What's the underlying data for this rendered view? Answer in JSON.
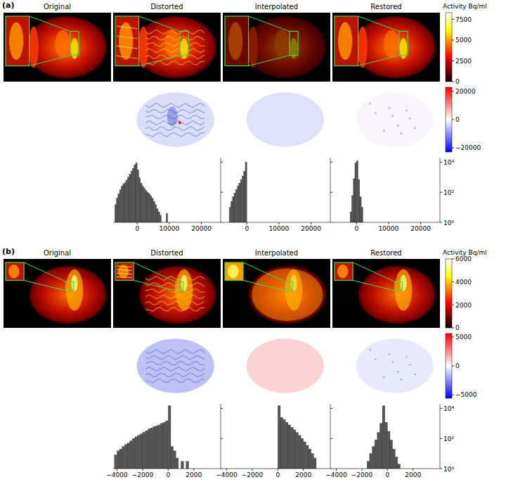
{
  "figure": {
    "panels": [
      {
        "letter": "(a)",
        "columns": [
          "Original",
          "Distorted",
          "Interpolated",
          "Restored"
        ],
        "colorbar": {
          "label": "Activity Bq/ml",
          "range": [
            0,
            8300
          ],
          "ticks": [
            0,
            2500,
            5000,
            7500
          ]
        },
        "diff_colorbar": {
          "range": [
            -23000,
            23000
          ],
          "ticks": [
            {
              "value": -20000,
              "label": "−20000"
            },
            0,
            20000
          ]
        }
      },
      {
        "letter": "(b)",
        "columns": [
          "Original",
          "Distorted",
          "Interpolated",
          "Restored"
        ],
        "colorbar": {
          "label": "Activity Bq/ml",
          "range": [
            0,
            6000
          ],
          "ticks": [
            0,
            2000,
            4000,
            6000
          ]
        },
        "diff_colorbar": {
          "range": [
            -5600,
            5600
          ],
          "ticks": [
            {
              "value": -5000,
              "label": "−5000"
            },
            0,
            5000
          ]
        }
      }
    ]
  },
  "chart_data": [
    {
      "type": "histogram",
      "color": "#555555",
      "log": "y",
      "tick_labels": "x",
      "bins": [
        -7000,
        -6500,
        -6000,
        -5500,
        -5000,
        -4500,
        -4000,
        -3500,
        -3000,
        -2500,
        -2000,
        -1500,
        -1000,
        -500,
        0,
        500,
        1000,
        1500,
        2000,
        2500,
        3000,
        3500,
        4000,
        4500,
        5000,
        5500,
        6000,
        6500,
        7000,
        7500,
        8000,
        8500,
        9000,
        9500,
        10000
      ],
      "values": [
        15,
        40,
        80,
        150,
        250,
        350,
        450,
        650,
        1000,
        1600,
        2600,
        4000,
        6500,
        9000,
        3000,
        900,
        400,
        250,
        180,
        130,
        100,
        80,
        60,
        40,
        25,
        15,
        8,
        5,
        3,
        1,
        1,
        1,
        4,
        1
      ],
      "xlim": [
        -7500,
        26000
      ],
      "xticks": [
        0,
        10000,
        20000
      ],
      "ylim": [
        1,
        20000
      ],
      "yticks": [
        {
          "value": 1,
          "label": "10⁰"
        },
        {
          "value": 100,
          "label": "10²"
        },
        {
          "value": 10000,
          "label": "10⁴"
        }
      ]
    },
    {
      "type": "histogram",
      "color": "#555555",
      "log": "y",
      "tick_labels": "x",
      "bins": [
        -5500,
        -5000,
        -4500,
        -4000,
        -3500,
        -3000,
        -2500,
        -2000,
        -1500,
        -1000,
        -500,
        0
      ],
      "values": [
        10,
        25,
        50,
        90,
        150,
        250,
        400,
        700,
        1200,
        2500,
        10000
      ],
      "xlim": [
        -7500,
        26000
      ],
      "xticks": [
        0,
        10000,
        20000
      ],
      "ylim": [
        1,
        20000
      ],
      "yticks": [
        {
          "value": 1,
          "label": "10⁰"
        },
        {
          "value": 100,
          "label": "10²"
        },
        {
          "value": 10000,
          "label": "10⁴"
        }
      ]
    },
    {
      "type": "histogram",
      "color": "#555555",
      "log": "y",
      "tick_labels": true,
      "bins": [
        -2000,
        -1500,
        -1000,
        -500,
        0,
        500,
        1000,
        1500,
        2000
      ],
      "values": [
        5,
        60,
        800,
        9000,
        12000,
        700,
        50,
        10
      ],
      "xlim": [
        -7500,
        26000
      ],
      "xticks": [
        0,
        10000,
        20000
      ],
      "ylim": [
        1,
        20000
      ],
      "yticks": [
        {
          "value": 1,
          "label": "10⁰"
        },
        {
          "value": 100,
          "label": "10²"
        },
        {
          "value": 10000,
          "label": "10⁴"
        }
      ]
    },
    {
      "type": "histogram",
      "color": "#555555",
      "log": "y",
      "tick_labels": "x",
      "bins": [
        -4200,
        -4000,
        -3800,
        -3600,
        -3400,
        -3200,
        -3000,
        -2800,
        -2600,
        -2400,
        -2200,
        -2000,
        -1800,
        -1600,
        -1400,
        -1200,
        -1000,
        -800,
        -600,
        -400,
        -200,
        0,
        200,
        400,
        600,
        800,
        1000,
        1200,
        1400,
        1600
      ],
      "values": [
        8,
        15,
        20,
        30,
        40,
        50,
        70,
        100,
        130,
        160,
        200,
        260,
        330,
        420,
        500,
        600,
        700,
        800,
        1000,
        1200,
        1500,
        15000,
        30,
        15,
        5,
        1,
        3,
        1,
        3
      ],
      "xlim": [
        -4300,
        4100
      ],
      "xticks": [
        {
          "value": -4000,
          "label": "−4000"
        },
        {
          "value": -2000,
          "label": "−2000"
        },
        0,
        2000
      ],
      "ylim": [
        1,
        20000
      ],
      "yticks": [
        {
          "value": 1,
          "label": "10⁰"
        },
        {
          "value": 100,
          "label": "10²"
        },
        {
          "value": 10000,
          "label": "10⁴"
        }
      ]
    },
    {
      "type": "histogram",
      "color": "#555555",
      "log": "y",
      "tick_labels": "x",
      "bins": [
        0,
        200,
        400,
        600,
        800,
        1000,
        1200,
        1400,
        1600,
        1800,
        2000,
        2200,
        2400,
        2600,
        2800,
        3000
      ],
      "values": [
        15000,
        2500,
        1800,
        1200,
        800,
        550,
        380,
        250,
        160,
        100,
        60,
        35,
        20,
        10,
        5
      ],
      "xlim": [
        -4300,
        4100
      ],
      "xticks": [
        {
          "value": -4000,
          "label": "−4000"
        },
        {
          "value": -2000,
          "label": "−2000"
        },
        0,
        2000
      ],
      "ylim": [
        1,
        20000
      ],
      "yticks": [
        {
          "value": 1,
          "label": "10⁰"
        },
        {
          "value": 100,
          "label": "10²"
        },
        {
          "value": 10000,
          "label": "10⁴"
        }
      ]
    },
    {
      "type": "histogram",
      "color": "#555555",
      "log": "y",
      "tick_labels": true,
      "bins": [
        -1600,
        -1400,
        -1200,
        -1000,
        -800,
        -600,
        -400,
        -200,
        0,
        200,
        400,
        600,
        800,
        1000
      ],
      "values": [
        3,
        10,
        30,
        80,
        250,
        1000,
        15000,
        1200,
        300,
        80,
        20,
        6,
        2
      ],
      "xlim": [
        -4300,
        4100
      ],
      "xticks": [
        {
          "value": -4000,
          "label": "−4000"
        },
        {
          "value": -2000,
          "label": "−2000"
        },
        0,
        2000
      ],
      "ylim": [
        1,
        20000
      ],
      "yticks": [
        {
          "value": 1,
          "label": "10⁰"
        },
        {
          "value": 100,
          "label": "10²"
        },
        {
          "value": 10000,
          "label": "10⁴"
        }
      ]
    }
  ]
}
